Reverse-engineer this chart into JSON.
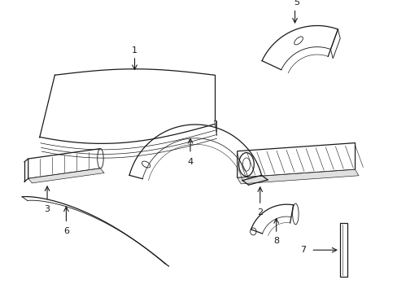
{
  "background_color": "#ffffff",
  "line_color": "#1a1a1a",
  "figsize": [
    4.89,
    3.6
  ],
  "dpi": 100,
  "lw": 0.9
}
